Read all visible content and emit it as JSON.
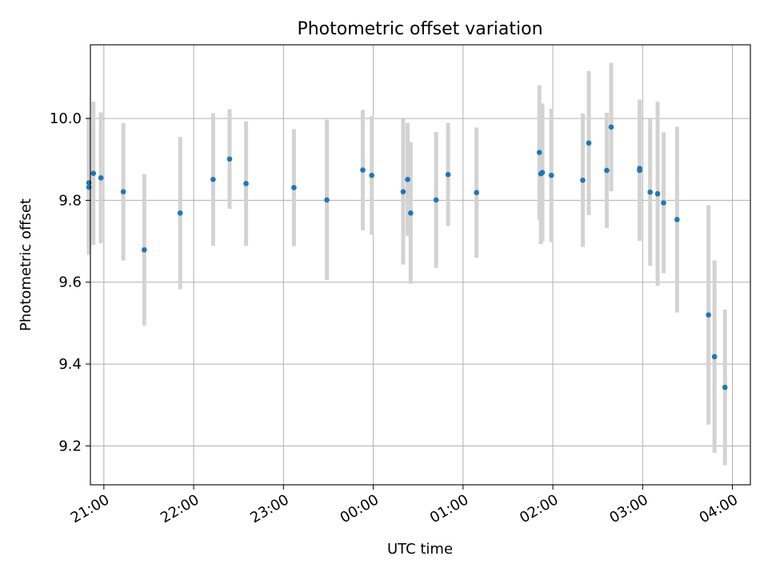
{
  "chart_data": {
    "type": "scatter",
    "title": "Photometric offset variation",
    "xlabel": "UTC time",
    "ylabel": "Photometric offset",
    "x_is_time": true,
    "xlim": [
      "20:51",
      "04:12"
    ],
    "ylim": [
      9.105,
      10.18
    ],
    "xticks": [
      "21:00",
      "22:00",
      "23:00",
      "00:00",
      "01:00",
      "02:00",
      "03:00",
      "04:00"
    ],
    "yticks": [
      9.2,
      9.4,
      9.6,
      9.8,
      10.0
    ],
    "ytick_labels": [
      "9.2",
      "9.4",
      "9.6",
      "9.8",
      "10.0"
    ],
    "grid": true,
    "colors": {
      "point": "#1f77b4",
      "errorbar": "#d3d3d3",
      "grid": "#b0b0b0"
    },
    "series": [
      {
        "points": [
          {
            "t": "20:50",
            "y": 9.843,
            "err": 0.16
          },
          {
            "t": "20:50",
            "y": 9.832,
            "err": 0.165
          },
          {
            "t": "20:53",
            "y": 9.866,
            "err": 0.175
          },
          {
            "t": "20:58",
            "y": 9.855,
            "err": 0.16
          },
          {
            "t": "21:13",
            "y": 9.821,
            "err": 0.168
          },
          {
            "t": "21:27",
            "y": 9.679,
            "err": 0.185
          },
          {
            "t": "21:51",
            "y": 9.769,
            "err": 0.186
          },
          {
            "t": "22:13",
            "y": 9.851,
            "err": 0.162
          },
          {
            "t": "22:24",
            "y": 9.901,
            "err": 0.122
          },
          {
            "t": "22:35",
            "y": 9.841,
            "err": 0.152
          },
          {
            "t": "23:07",
            "y": 9.831,
            "err": 0.143
          },
          {
            "t": "23:29",
            "y": 9.801,
            "err": 0.196
          },
          {
            "t": "23:53",
            "y": 9.874,
            "err": 0.147
          },
          {
            "t": "23:59",
            "y": 9.861,
            "err": 0.145
          },
          {
            "t": "00:20",
            "y": 9.821,
            "err": 0.178
          },
          {
            "t": "00:23",
            "y": 9.851,
            "err": 0.138
          },
          {
            "t": "00:25",
            "y": 9.769,
            "err": 0.173
          },
          {
            "t": "00:42",
            "y": 9.801,
            "err": 0.166
          },
          {
            "t": "00:50",
            "y": 9.863,
            "err": 0.126
          },
          {
            "t": "01:09",
            "y": 9.819,
            "err": 0.159
          },
          {
            "t": "01:51",
            "y": 9.917,
            "err": 0.164
          },
          {
            "t": "01:52",
            "y": 9.865,
            "err": 0.172
          },
          {
            "t": "01:53",
            "y": 9.868,
            "err": 0.168
          },
          {
            "t": "01:59",
            "y": 9.861,
            "err": 0.163
          },
          {
            "t": "02:20",
            "y": 9.849,
            "err": 0.163
          },
          {
            "t": "02:24",
            "y": 9.94,
            "err": 0.176
          },
          {
            "t": "02:36",
            "y": 9.873,
            "err": 0.141
          },
          {
            "t": "02:39",
            "y": 9.979,
            "err": 0.157
          },
          {
            "t": "02:58",
            "y": 9.878,
            "err": 0.168
          },
          {
            "t": "02:58",
            "y": 9.873,
            "err": 0.172
          },
          {
            "t": "03:05",
            "y": 9.82,
            "err": 0.18
          },
          {
            "t": "03:10",
            "y": 9.816,
            "err": 0.225
          },
          {
            "t": "03:14",
            "y": 9.794,
            "err": 0.172
          },
          {
            "t": "03:23",
            "y": 9.753,
            "err": 0.227
          },
          {
            "t": "03:44",
            "y": 9.52,
            "err": 0.268
          },
          {
            "t": "03:48",
            "y": 9.418,
            "err": 0.235
          },
          {
            "t": "03:55",
            "y": 9.343,
            "err": 0.19
          }
        ]
      }
    ]
  }
}
